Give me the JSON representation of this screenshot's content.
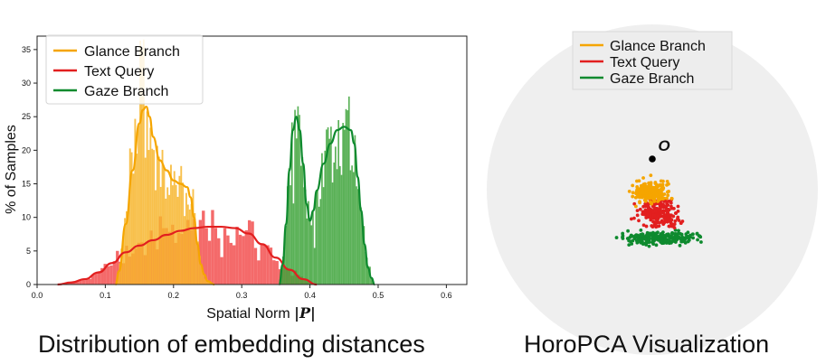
{
  "colors": {
    "glance": "#F5A500",
    "glance_fill": "#F7B52C",
    "text": "#E21F1F",
    "text_fill": "#F25050",
    "gaze": "#0E8A2E",
    "gaze_fill": "#3DA33A",
    "disk": "#EFEFEF"
  },
  "legend_labels": {
    "glance": "Glance Branch",
    "text": "Text Query",
    "gaze": "Gaze Branch"
  },
  "captions": {
    "left": "Distribution of embedding distances",
    "right": "HoroPCA Visualization"
  },
  "origin_label": "O",
  "chart_data": [
    {
      "type": "histogram",
      "xlabel": "Spatial Norm",
      "xlabel_math": "|P|",
      "ylabel": "% of Samples",
      "xlim": [
        0.0,
        0.63
      ],
      "ylim": [
        0,
        37
      ],
      "xticks": [
        "0.0",
        "0.1",
        "0.2",
        "0.3",
        "0.4",
        "0.5",
        "0.6"
      ],
      "yticks": [
        "0",
        "5",
        "10",
        "15",
        "20",
        "25",
        "30",
        "35"
      ],
      "legend_placement": "top-left",
      "grid": false,
      "series": [
        {
          "name": "Glance Branch",
          "kde_x": [
            0.115,
            0.12,
            0.13,
            0.14,
            0.15,
            0.155,
            0.16,
            0.165,
            0.17,
            0.18,
            0.19,
            0.2,
            0.21,
            0.22,
            0.225,
            0.23,
            0.235,
            0.24,
            0.245,
            0.25,
            0.26
          ],
          "kde_y": [
            0,
            2,
            9,
            17,
            24,
            26,
            26.5,
            25,
            22,
            18.5,
            17,
            15.5,
            15,
            14.5,
            13,
            10,
            6,
            3,
            1.5,
            0.5,
            0
          ]
        },
        {
          "name": "Text Query",
          "kde_x": [
            0.03,
            0.05,
            0.07,
            0.09,
            0.11,
            0.13,
            0.15,
            0.17,
            0.19,
            0.21,
            0.23,
            0.25,
            0.27,
            0.29,
            0.31,
            0.33,
            0.35,
            0.37,
            0.39,
            0.41
          ],
          "kde_y": [
            0,
            0.3,
            0.8,
            1.8,
            3.2,
            4.8,
            5.8,
            6.6,
            7.4,
            8.0,
            8.4,
            8.6,
            8.6,
            8.4,
            7.6,
            6.0,
            4.0,
            2.2,
            0.8,
            0
          ]
        },
        {
          "name": "Gaze Branch",
          "kde_x": [
            0.355,
            0.36,
            0.365,
            0.37,
            0.375,
            0.38,
            0.385,
            0.39,
            0.395,
            0.4,
            0.405,
            0.41,
            0.42,
            0.43,
            0.44,
            0.45,
            0.46,
            0.465,
            0.47,
            0.475,
            0.48,
            0.485,
            0.49,
            0.495
          ],
          "kde_y": [
            0,
            3,
            9,
            17,
            23,
            25,
            23,
            18,
            12,
            9.5,
            11,
            14,
            18,
            21,
            23,
            23.5,
            23,
            21,
            16,
            11,
            6,
            2.5,
            1,
            0
          ]
        }
      ]
    },
    {
      "type": "scatter",
      "title": "HoroPCA Visualization",
      "legend_placement": "top-center",
      "series": [
        {
          "name": "Glance Branch",
          "cluster": "upper"
        },
        {
          "name": "Text Query",
          "cluster": "middle"
        },
        {
          "name": "Gaze Branch",
          "cluster": "lower"
        }
      ]
    }
  ]
}
